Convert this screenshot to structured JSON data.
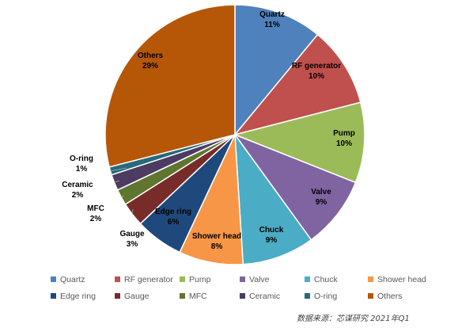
{
  "chart_data": {
    "type": "pie",
    "title": "",
    "slices": [
      {
        "name": "Quartz",
        "value": 11,
        "label": "11%",
        "color": "#4F81BD"
      },
      {
        "name": "RF generator",
        "value": 10,
        "label": "10%",
        "color": "#C0504D"
      },
      {
        "name": "Pump",
        "value": 10,
        "label": "10%",
        "color": "#9BBB59"
      },
      {
        "name": "Valve",
        "value": 9,
        "label": "9%",
        "color": "#8064A2"
      },
      {
        "name": "Chuck",
        "value": 9,
        "label": "9%",
        "color": "#4BACC6"
      },
      {
        "name": "Shower head",
        "value": 8,
        "label": "8%",
        "color": "#F79646"
      },
      {
        "name": "Edge ring",
        "value": 6,
        "label": "6%",
        "color": "#1F497D"
      },
      {
        "name": "Gauge",
        "value": 3,
        "label": "3%",
        "color": "#772C2A"
      },
      {
        "name": "MFC",
        "value": 2,
        "label": "2%",
        "color": "#5F7530"
      },
      {
        "name": "Ceramic",
        "value": 2,
        "label": "2%",
        "color": "#4D3B62"
      },
      {
        "name": "O-ring",
        "value": 1,
        "label": "1%",
        "color": "#276A7C"
      },
      {
        "name": "Others",
        "value": 29,
        "label": "29%",
        "color": "#B65708"
      }
    ],
    "legend_position": "bottom"
  },
  "source_note": "数据来源：芯谋研究  2021年Q1"
}
